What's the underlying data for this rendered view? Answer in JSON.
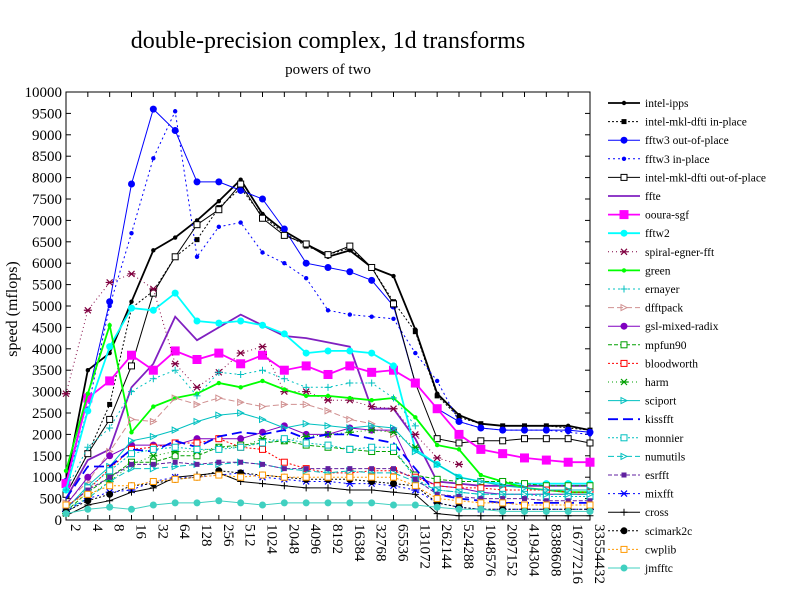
{
  "chart_data": {
    "type": "line",
    "title": "double-precision complex, 1d transforms",
    "subtitle": "powers of two",
    "ylabel": "speed (mflops)",
    "xlabel": "",
    "ylim": [
      0,
      10000
    ],
    "yticks": [
      0,
      500,
      1000,
      1500,
      2000,
      2500,
      3000,
      3500,
      4000,
      4500,
      5000,
      5500,
      6000,
      6500,
      7000,
      7500,
      8000,
      8500,
      9000,
      9500,
      10000
    ],
    "categories": [
      "2",
      "4",
      "8",
      "16",
      "32",
      "64",
      "128",
      "256",
      "512",
      "1024",
      "2048",
      "4096",
      "8192",
      "16384",
      "32768",
      "65536",
      "131072",
      "262144",
      "524288",
      "1048576",
      "2097152",
      "4194304",
      "8388608",
      "16777216",
      "33554432"
    ],
    "grid": false,
    "legend_position": "right",
    "series": [
      {
        "name": "intel-ipps",
        "color": "#000000",
        "dash": "",
        "marker": "dot",
        "values": [
          900,
          3500,
          3900,
          5100,
          6300,
          6600,
          7000,
          7450,
          7950,
          7150,
          6750,
          6450,
          6150,
          6300,
          5900,
          5700,
          4450,
          2950,
          2450,
          2250,
          2200,
          2200,
          2200,
          2200,
          2100
        ]
      },
      {
        "name": "intel-mkl-dfti in-place",
        "color": "#000000",
        "dash": "2,2",
        "marker": "square",
        "values": [
          600,
          1550,
          2700,
          4950,
          5350,
          6150,
          6550,
          7300,
          7750,
          7100,
          6700,
          6400,
          6200,
          6350,
          5900,
          5100,
          4400,
          2900,
          2400,
          2250,
          2200,
          2200,
          2200,
          2150,
          2100
        ]
      },
      {
        "name": "fftw3 out-of-place",
        "color": "#0000ff",
        "dash": "",
        "marker": "circle",
        "values": [
          900,
          2900,
          5100,
          7850,
          9600,
          9100,
          7900,
          7900,
          7700,
          7500,
          6800,
          6000,
          5900,
          5800,
          5600,
          5000,
          3200,
          2600,
          2300,
          2150,
          2100,
          2100,
          2100,
          2100,
          2050
        ]
      },
      {
        "name": "fftw3 in-place",
        "color": "#0000ff",
        "dash": "2,3",
        "marker": "dot",
        "values": [
          800,
          2600,
          5000,
          6700,
          8450,
          9550,
          6150,
          6850,
          6950,
          6250,
          6000,
          5650,
          4900,
          4800,
          4750,
          4700,
          3900,
          3250,
          2300,
          2150,
          2100,
          2100,
          2100,
          2050,
          2000
        ]
      },
      {
        "name": "intel-mkl-dfti out-of-place",
        "color": "#000000",
        "dash": "",
        "marker": "osquare",
        "values": [
          600,
          1550,
          2350,
          3600,
          5300,
          6150,
          6900,
          7250,
          7850,
          7050,
          6650,
          6450,
          6200,
          6400,
          5900,
          5050,
          3200,
          1900,
          1800,
          1850,
          1850,
          1900,
          1900,
          1900,
          1800
        ]
      },
      {
        "name": "ffte",
        "color": "#8020c0",
        "dash": "",
        "marker": "none",
        "values": [
          500,
          1400,
          1650,
          3100,
          3650,
          4750,
          4200,
          4500,
          4800,
          4550,
          4300,
          4250,
          4150,
          4050,
          2600,
          2600,
          1900,
          900,
          850,
          800,
          800,
          800,
          800,
          800,
          800
        ]
      },
      {
        "name": "ooura-sgf",
        "color": "#ff00ff",
        "dash": "",
        "marker": "bigsquare",
        "values": [
          850,
          2850,
          3250,
          3850,
          3500,
          3950,
          3750,
          3900,
          3650,
          3850,
          3500,
          3600,
          3400,
          3600,
          3450,
          3500,
          3200,
          2600,
          2000,
          1650,
          1550,
          1450,
          1400,
          1350,
          1350
        ]
      },
      {
        "name": "fftw2",
        "color": "#00ffff",
        "dash": "",
        "marker": "circle",
        "values": [
          700,
          2550,
          4050,
          4950,
          4900,
          5300,
          4650,
          4600,
          4650,
          4550,
          4350,
          3900,
          3950,
          3950,
          3900,
          3600,
          1650,
          1300,
          1000,
          900,
          850,
          850,
          850,
          850,
          850
        ]
      },
      {
        "name": "spiral-egner-fft",
        "color": "#800040",
        "dash": "1,3",
        "marker": "star",
        "values": [
          2950,
          4900,
          5550,
          5750,
          5400,
          3650,
          3100,
          3450,
          3900,
          4050,
          3000,
          3000,
          2800,
          2800,
          2650,
          2600,
          2000,
          1450,
          1300,
          null,
          null,
          null,
          null,
          null,
          null
        ]
      },
      {
        "name": "green",
        "color": "#00ff00",
        "dash": "",
        "marker": "dot",
        "values": [
          1150,
          2950,
          4550,
          2050,
          2650,
          2850,
          2950,
          3200,
          3100,
          3250,
          3050,
          2900,
          2900,
          2850,
          2800,
          2850,
          2400,
          1750,
          1650,
          1050,
          900,
          750,
          700,
          650,
          650
        ]
      },
      {
        "name": "ernayer",
        "color": "#00c0c0",
        "dash": "2,3",
        "marker": "plus",
        "values": [
          700,
          1700,
          2150,
          3000,
          3300,
          3500,
          2900,
          3450,
          3400,
          3500,
          3300,
          3100,
          3100,
          3200,
          3200,
          2850,
          2200,
          null,
          null,
          null,
          null,
          null,
          null,
          null,
          null
        ]
      },
      {
        "name": "dfftpack",
        "color": "#d09090",
        "dash": "6,3",
        "marker": "tri",
        "values": [
          400,
          900,
          1600,
          2350,
          2300,
          2850,
          2700,
          2850,
          2750,
          2650,
          2700,
          2700,
          2550,
          2350,
          2250,
          2000,
          null,
          null,
          null,
          null,
          null,
          null,
          null,
          null,
          null
        ]
      },
      {
        "name": "gsl-mixed-radix",
        "color": "#8000c0",
        "dash": "",
        "marker": "circle",
        "values": [
          350,
          1000,
          1500,
          1750,
          1750,
          1750,
          1900,
          1900,
          1900,
          2050,
          2200,
          2000,
          2000,
          2150,
          2100,
          2100,
          1050,
          800,
          750,
          650,
          600,
          600,
          600,
          600,
          600
        ]
      },
      {
        "name": "mpfun90",
        "color": "#00a000",
        "dash": "4,2",
        "marker": "osquare",
        "values": [
          200,
          650,
          1000,
          1350,
          1350,
          1500,
          1500,
          1700,
          1750,
          1800,
          1850,
          1750,
          1700,
          1650,
          1600,
          1600,
          1050,
          950,
          900,
          900,
          900,
          850,
          800,
          800,
          800
        ]
      },
      {
        "name": "bloodworth",
        "color": "#ff0000",
        "dash": "2,2",
        "marker": "osquare",
        "values": [
          300,
          700,
          1200,
          1650,
          1700,
          1800,
          1800,
          1900,
          1700,
          1650,
          1350,
          1200,
          1100,
          1100,
          1150,
          1150,
          1000,
          800,
          750,
          750,
          700,
          700,
          700,
          650,
          650
        ]
      },
      {
        "name": "harm",
        "color": "#00a000",
        "dash": "1,3",
        "marker": "star",
        "values": [
          150,
          550,
          900,
          1300,
          1500,
          1600,
          1600,
          1700,
          1700,
          1900,
          1850,
          1950,
          2000,
          2050,
          2100,
          2050,
          1700,
          null,
          null,
          null,
          null,
          null,
          null,
          null,
          null
        ]
      },
      {
        "name": "sciport",
        "color": "#00c0c0",
        "dash": "",
        "marker": "tri",
        "values": [
          250,
          800,
          1250,
          1850,
          1950,
          2100,
          2300,
          2450,
          2500,
          2350,
          2150,
          2250,
          2200,
          2150,
          2200,
          2150,
          1600,
          1300,
          1000,
          900,
          800,
          750,
          700,
          700,
          700
        ]
      },
      {
        "name": "kissfft",
        "color": "#0000ff",
        "dash": "10,5",
        "marker": "none",
        "values": [
          500,
          1250,
          1250,
          1650,
          1600,
          1850,
          1700,
          1950,
          2050,
          2000,
          2100,
          1900,
          2000,
          2000,
          1900,
          1800,
          1200,
          600,
          500,
          450,
          400,
          400,
          400,
          400,
          400
        ]
      },
      {
        "name": "monnier",
        "color": "#00c0c0",
        "dash": "2,2",
        "marker": "osquare",
        "values": [
          250,
          750,
          1150,
          1550,
          1650,
          1700,
          1650,
          1650,
          1700,
          1800,
          1900,
          1800,
          1750,
          1650,
          1700,
          1700,
          950,
          700,
          650,
          600,
          600,
          600,
          550,
          550,
          550
        ]
      },
      {
        "name": "numutils",
        "color": "#00c0c0",
        "dash": "6,3",
        "marker": "tri",
        "values": [
          250,
          500,
          900,
          1200,
          1200,
          1250,
          1300,
          1300,
          1350,
          1300,
          1200,
          1150,
          1100,
          1150,
          1100,
          1100,
          900,
          700,
          650,
          600,
          600,
          600,
          600,
          600,
          600
        ]
      },
      {
        "name": "esrfft",
        "color": "#6020a0",
        "dash": "4,2",
        "marker": "square",
        "values": [
          300,
          700,
          1000,
          1300,
          1300,
          1350,
          1300,
          1350,
          1350,
          1300,
          1200,
          1200,
          1200,
          1200,
          1200,
          1200,
          950,
          600,
          550,
          500,
          500,
          500,
          450,
          450,
          450
        ]
      },
      {
        "name": "mixfft",
        "color": "#0000ff",
        "dash": "2,3",
        "marker": "star",
        "values": [
          200,
          500,
          650,
          700,
          900,
          1000,
          1000,
          1050,
          1100,
          1000,
          950,
          900,
          900,
          850,
          850,
          800,
          700,
          400,
          300,
          250,
          250,
          250,
          250,
          250,
          250
        ]
      },
      {
        "name": "cross",
        "color": "#000000",
        "dash": "",
        "marker": "plus",
        "values": [
          100,
          350,
          450,
          650,
          750,
          1000,
          1050,
          1100,
          900,
          850,
          800,
          750,
          750,
          700,
          700,
          650,
          600,
          150,
          100,
          100,
          100,
          100,
          100,
          100,
          100
        ]
      },
      {
        "name": "scimark2c",
        "color": "#000000",
        "dash": "2,2",
        "marker": "circle",
        "values": [
          200,
          450,
          600,
          800,
          850,
          950,
          1000,
          1150,
          1100,
          1050,
          1000,
          950,
          950,
          950,
          900,
          850,
          800,
          400,
          300,
          250,
          250,
          250,
          250,
          250,
          250
        ]
      },
      {
        "name": "cwplib",
        "color": "#ff9900",
        "dash": "2,2",
        "marker": "osquare",
        "values": [
          350,
          600,
          800,
          800,
          900,
          950,
          1000,
          1050,
          1000,
          1050,
          1000,
          1000,
          1000,
          1000,
          1000,
          1000,
          800,
          500,
          450,
          400,
          400,
          350,
          350,
          350,
          350
        ]
      },
      {
        "name": "jmfftc",
        "color": "#40d0c0",
        "dash": "",
        "marker": "circle",
        "values": [
          150,
          250,
          300,
          250,
          350,
          400,
          400,
          450,
          400,
          350,
          400,
          400,
          400,
          400,
          400,
          350,
          350,
          300,
          250,
          250,
          200,
          200,
          200,
          200,
          200
        ]
      }
    ]
  }
}
